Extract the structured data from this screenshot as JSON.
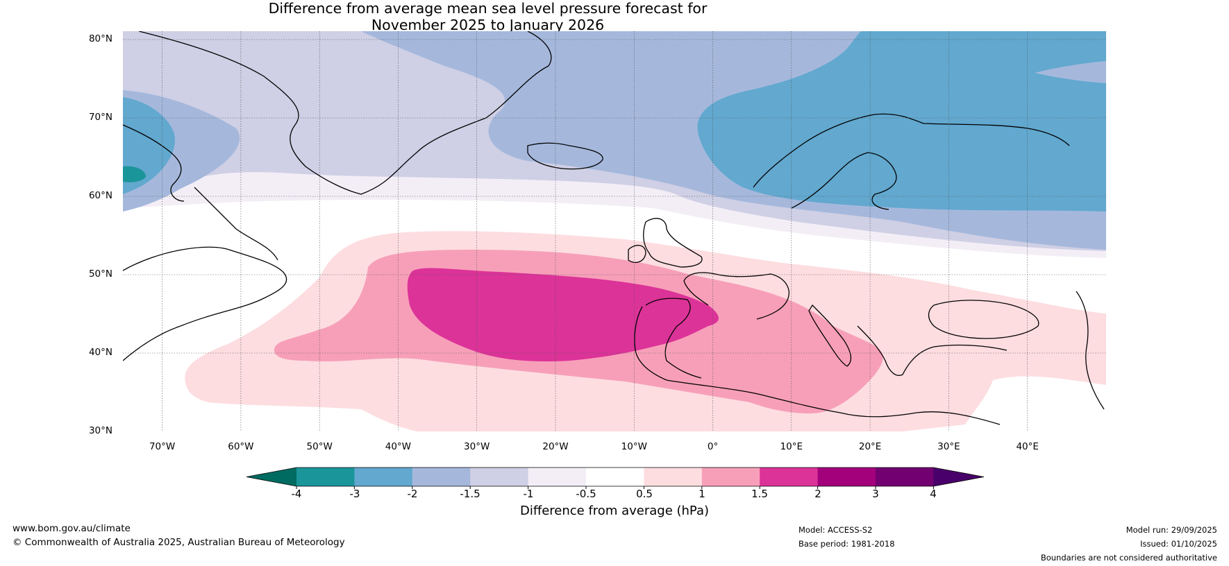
{
  "title": {
    "line1": "Difference from average mean sea level pressure forecast for",
    "line2": "November 2025 to January 2026"
  },
  "map": {
    "latitude_labels": [
      "80°N",
      "70°N",
      "60°N",
      "50°N",
      "40°N",
      "30°N"
    ],
    "longitude_labels": [
      "70°W",
      "60°W",
      "50°W",
      "40°W",
      "30°W",
      "20°W",
      "10°W",
      "0°",
      "10°E",
      "20°E",
      "30°E",
      "40°E"
    ],
    "extent": {
      "lon_min": -75,
      "lon_max": 50,
      "lat_min": 30,
      "lat_max": 81
    },
    "anomaly_regions": [
      {
        "level": "-1.5 to -1",
        "area": "far north (Arctic) and Labrador Sea"
      },
      {
        "level": "-2 to -1.5",
        "area": "Greenland Sea and Norwegian Sea"
      },
      {
        "level": "-3 to -2",
        "area": "Scandinavia, Barents Sea and Baffin region"
      },
      {
        "level": "1.5 to 2",
        "area": "central North Atlantic west of Iberia"
      },
      {
        "level": "1 to 1.5",
        "area": "North Atlantic, Iberia, Mediterranean"
      },
      {
        "level": "0.5 to 1",
        "area": "broad mid-latitude North Atlantic, southern Europe, Black Sea"
      }
    ]
  },
  "colorbar": {
    "tick_labels": [
      "-4",
      "-3",
      "-2",
      "-1.5",
      "-1",
      "-0.5",
      "0.5",
      "1",
      "1.5",
      "2",
      "3",
      "4"
    ],
    "colors": [
      "#006b60",
      "#1a9599",
      "#62a8cf",
      "#a5b8dc",
      "#cfcfe5",
      "#f3eef6",
      "#ffffff",
      "#fddde0",
      "#f79fb9",
      "#dc3398",
      "#a3007c",
      "#720071",
      "#49006a"
    ],
    "label": "Difference from average (hPa)"
  },
  "footer": {
    "website": "www.bom.gov.au/climate",
    "copyright": "© Commonwealth of Australia 2025, Australian Bureau of Meteorology",
    "model": "Model: ACCESS-S2",
    "base_period": "Base period: 1981-2018",
    "model_run": "Model run: 29/09/2025",
    "issued": "Issued: 01/10/2025",
    "disclaimer": "Boundaries are not considered authoritative"
  }
}
